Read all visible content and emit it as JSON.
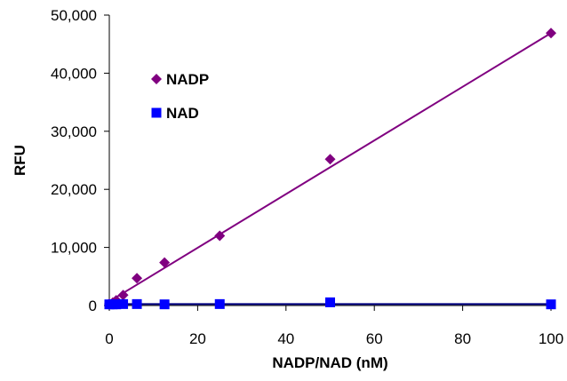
{
  "chart_data": {
    "type": "scatter",
    "title": "",
    "xlabel": "NADP/NAD (nM)",
    "ylabel": "RFU",
    "xlim": [
      0,
      100
    ],
    "ylim": [
      0,
      50000
    ],
    "x_ticks": [
      0,
      20,
      40,
      60,
      80,
      100
    ],
    "x_tick_labels": [
      "0",
      "20",
      "40",
      "60",
      "80",
      "100"
    ],
    "y_ticks": [
      0,
      10000,
      20000,
      30000,
      40000,
      50000
    ],
    "y_tick_labels": [
      "0",
      "10,000",
      "20,000",
      "30,000",
      "40,000",
      "50,000"
    ],
    "grid": false,
    "legend": "top-left",
    "series": [
      {
        "name": "NADP",
        "marker": "diamond",
        "color": "#800080",
        "x": [
          0,
          0.78,
          1.56,
          3.13,
          6.25,
          12.5,
          25,
          50,
          100
        ],
        "y": [
          300,
          500,
          900,
          1800,
          4700,
          7400,
          12000,
          25200,
          46900
        ],
        "trendline": {
          "x": [
            0,
            100
          ],
          "y": [
            700,
            46900
          ]
        }
      },
      {
        "name": "NAD",
        "marker": "square",
        "color": "#0000ff",
        "x": [
          0,
          0.78,
          1.56,
          3.13,
          6.25,
          12.5,
          25,
          50,
          100
        ],
        "y": [
          200,
          200,
          200,
          250,
          250,
          200,
          250,
          550,
          200
        ],
        "trendline": {
          "x": [
            0,
            100
          ],
          "y": [
            250,
            250
          ]
        },
        "trendline_color": "#000080"
      }
    ]
  }
}
